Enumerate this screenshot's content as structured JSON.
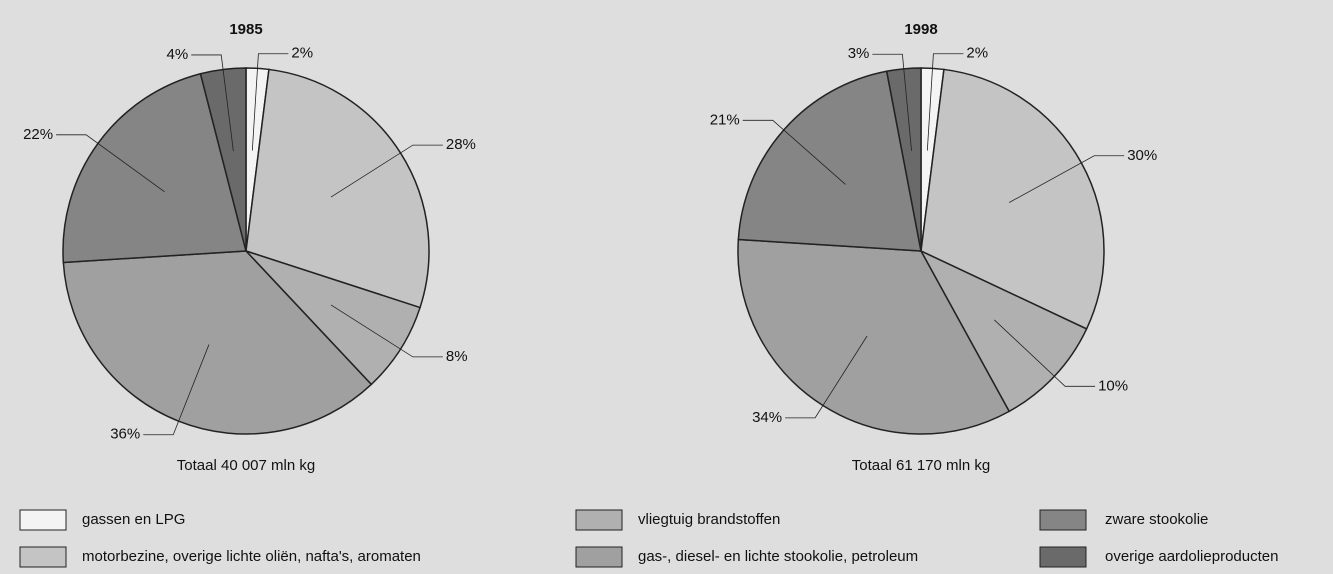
{
  "legend": {
    "categories": [
      "gassen en LPG",
      "motorbezine, overige lichte oliën, nafta's, aromaten",
      "vliegtuig brandstoffen",
      "gas-, diesel- en lichte stookolie, petroleum",
      "zware stookolie",
      "overige aardolieproducten"
    ],
    "colors": [
      "#f4f4f4",
      "#c4c4c4",
      "#b0b0b0",
      "#a0a0a0",
      "#858585",
      "#6a6a6a"
    ]
  },
  "chart_data": [
    {
      "type": "pie",
      "title": "1985",
      "caption": "Totaal 40 007 mln kg",
      "values": [
        2,
        28,
        8,
        36,
        22,
        4
      ],
      "value_labels": [
        "2%",
        "28%",
        "8%",
        "36%",
        "22%",
        "4%"
      ]
    },
    {
      "type": "pie",
      "title": "1998",
      "caption": "Totaal 61 170 mln kg",
      "values": [
        2,
        30,
        10,
        34,
        21,
        3
      ],
      "value_labels": [
        "2%",
        "30%",
        "10%",
        "34%",
        "21%",
        "3%"
      ]
    }
  ]
}
